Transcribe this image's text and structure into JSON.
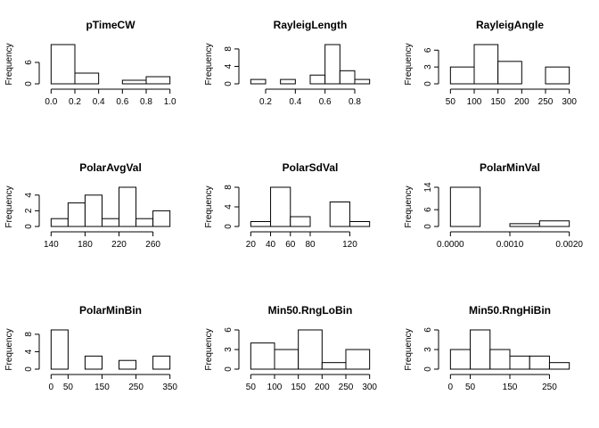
{
  "chart_data": [
    {
      "type": "histogram",
      "title": "pTimeCW",
      "ylabel": "Frequency",
      "color": "#ffffff",
      "bins": [
        0,
        0.2,
        0.4,
        0.6,
        0.8,
        1.0
      ],
      "values": [
        11,
        3,
        0,
        1,
        2
      ],
      "xlim": [
        -0.04,
        1.04
      ],
      "ylim": [
        0,
        11
      ],
      "xticks": [
        {
          "value": 0,
          "label": "0.0"
        },
        0.2,
        0.4,
        0.6,
        0.8,
        {
          "value": 1,
          "label": "1.0"
        }
      ],
      "yticks": [
        0,
        6
      ]
    },
    {
      "type": "histogram",
      "title": "RayleigLength",
      "ylabel": "Frequency",
      "color": "#ffffff",
      "bins": [
        0.1,
        0.2,
        0.3,
        0.4,
        0.5,
        0.6,
        0.7,
        0.8,
        0.9
      ],
      "values": [
        1,
        0,
        1,
        0,
        2,
        9,
        3,
        1
      ],
      "xlim": [
        0.068,
        0.932
      ],
      "ylim": [
        0,
        9
      ],
      "xticks": [
        0.2,
        0.4,
        0.6,
        0.8
      ],
      "yticks": [
        0,
        4,
        8
      ]
    },
    {
      "type": "histogram",
      "title": "RayleigAngle",
      "ylabel": "Frequency",
      "color": "#ffffff",
      "bins": [
        50,
        100,
        150,
        200,
        250,
        300
      ],
      "values": [
        3,
        7,
        4,
        0,
        3
      ],
      "xlim": [
        40,
        310
      ],
      "ylim": [
        0,
        7
      ],
      "xticks": [
        50,
        100,
        150,
        200,
        250,
        300
      ],
      "yticks": [
        0,
        3,
        6
      ]
    },
    {
      "type": "histogram",
      "title": "PolarAvgVal",
      "ylabel": "Frequency",
      "color": "#ffffff",
      "bins": [
        140,
        160,
        180,
        200,
        220,
        240,
        260,
        280
      ],
      "values": [
        1,
        3,
        4,
        1,
        5,
        1,
        2
      ],
      "xlim": [
        134.4,
        285.6
      ],
      "ylim": [
        0,
        5
      ],
      "xticks": [
        140,
        180,
        220,
        260
      ],
      "yticks": [
        0,
        2,
        4
      ]
    },
    {
      "type": "histogram",
      "title": "PolarSdVal",
      "ylabel": "Frequency",
      "color": "#ffffff",
      "bins": [
        20,
        40,
        60,
        80,
        100,
        120,
        140
      ],
      "values": [
        1,
        8,
        2,
        0,
        5,
        1
      ],
      "xlim": [
        15.2,
        144.8
      ],
      "ylim": [
        0,
        8
      ],
      "xticks": [
        20,
        40,
        60,
        80,
        120
      ],
      "yticks": [
        0,
        4,
        8
      ]
    },
    {
      "type": "histogram",
      "title": "PolarMinVal",
      "ylabel": "Frequency",
      "color": "#ffffff",
      "bins": [
        0,
        0.0005,
        0.001,
        0.0015,
        0.002
      ],
      "values": [
        14,
        0,
        1,
        2
      ],
      "xlim": [
        -8e-05,
        0.00208
      ],
      "ylim": [
        0,
        14
      ],
      "xticks": [
        {
          "value": 0,
          "label": "0.0000"
        },
        {
          "value": 0.001,
          "label": "0.0010"
        },
        {
          "value": 0.002,
          "label": "0.0020"
        }
      ],
      "yticks": [
        0,
        6,
        14
      ]
    },
    {
      "type": "histogram",
      "title": "PolarMinBin",
      "ylabel": "Frequency",
      "color": "#ffffff",
      "bins": [
        0,
        50,
        100,
        150,
        200,
        250,
        300,
        350
      ],
      "values": [
        9,
        0,
        3,
        0,
        2,
        0,
        3
      ],
      "xlim": [
        -14,
        364
      ],
      "ylim": [
        0,
        9
      ],
      "xticks": [
        0,
        50,
        150,
        250,
        350
      ],
      "yticks": [
        0,
        4,
        8
      ]
    },
    {
      "type": "histogram",
      "title": "Min50.RngLoBin",
      "ylabel": "Frequency",
      "color": "#ffffff",
      "bins": [
        50,
        100,
        150,
        200,
        250,
        300
      ],
      "values": [
        4,
        3,
        6,
        1,
        3
      ],
      "xlim": [
        40,
        310
      ],
      "ylim": [
        0,
        6
      ],
      "xticks": [
        50,
        100,
        150,
        200,
        250,
        300
      ],
      "yticks": [
        0,
        3,
        6
      ]
    },
    {
      "type": "histogram",
      "title": "Min50.RngHiBin",
      "ylabel": "Frequency",
      "color": "#ffffff",
      "bins": [
        0,
        50,
        100,
        150,
        200,
        250,
        300
      ],
      "values": [
        3,
        6,
        3,
        2,
        2,
        1
      ],
      "xlim": [
        -12,
        312
      ],
      "ylim": [
        0,
        6
      ],
      "xticks": [
        0,
        50,
        150,
        250
      ],
      "yticks": [
        0,
        3,
        6
      ]
    }
  ]
}
